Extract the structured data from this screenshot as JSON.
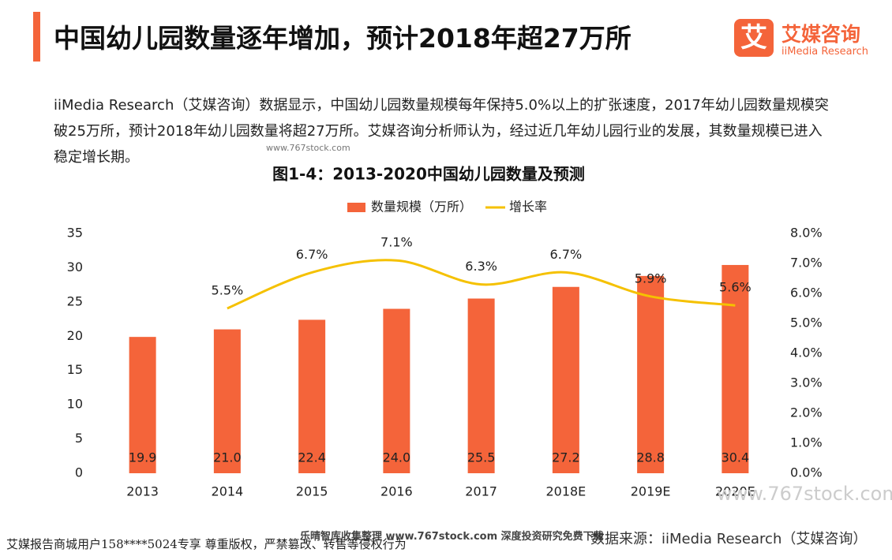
{
  "header": {
    "title": "中国幼儿园数量逐年增加，预计2018年超27万所",
    "logo_mark": "艾",
    "logo_text": "艾媒咨询",
    "logo_sub": "iiMedia Research"
  },
  "paragraph": "iiMedia Research（艾媒咨询）数据显示，中国幼儿园数量规模每年保持5.0%以上的扩张速度，2017年幼儿园数量规模突破25万所，预计2018年幼儿园数量将超27万所。艾媒咨询分析师认为，经过近几年幼儿园行业的发展，其数量规模已进入稳定增长期。",
  "chart_data": {
    "type": "bar",
    "title": "图1-4：2013-2020中国幼儿园数量及预测",
    "categories": [
      "2013",
      "2014",
      "2015",
      "2016",
      "2017",
      "2018E",
      "2019E",
      "2020E"
    ],
    "series": [
      {
        "name": "数量规模（万所）",
        "color": "#f4643a",
        "values": [
          19.9,
          21.0,
          22.4,
          24.0,
          25.5,
          27.2,
          28.8,
          30.4
        ],
        "value_labels": [
          "19.9",
          "21.0",
          "22.4",
          "24.0",
          "25.5",
          "27.2",
          "28.8",
          "30.4"
        ]
      },
      {
        "name": "增长率",
        "type": "line",
        "axis": "y2",
        "color": "#f5c100",
        "values": [
          null,
          5.5,
          6.7,
          7.1,
          6.3,
          6.7,
          5.9,
          5.6
        ],
        "value_labels": [
          null,
          "5.5%",
          "6.7%",
          "7.1%",
          "6.3%",
          "6.7%",
          "5.9%",
          "5.6%"
        ]
      }
    ],
    "ylim": [
      0,
      35
    ],
    "yticks": [
      0,
      5,
      10,
      15,
      20,
      25,
      30,
      35
    ],
    "y2lim": [
      0,
      8
    ],
    "y2ticks": [
      {
        "value": 0,
        "label": "0.0%"
      },
      {
        "value": 1,
        "label": "1.0%"
      },
      {
        "value": 2,
        "label": "2.0%"
      },
      {
        "value": 3,
        "label": "3.0%"
      },
      {
        "value": 4,
        "label": "4.0%"
      },
      {
        "value": 5,
        "label": "5.0%"
      },
      {
        "value": 6,
        "label": "6.0%"
      },
      {
        "value": 7,
        "label": "7.0%"
      },
      {
        "value": 8,
        "label": "8.0%"
      }
    ],
    "grid": false,
    "legend": "top"
  },
  "footer": {
    "source": "数据来源：iiMedia Research（艾媒咨询）",
    "notice": "艾媒报告商城用户158****5024专享 尊重版权，严禁篡改、转售等侵权行为",
    "watermark": "www.767stock.com",
    "banner": "乐晴智库收集整理 www.767stock.com 深度投资研究免费下载"
  }
}
